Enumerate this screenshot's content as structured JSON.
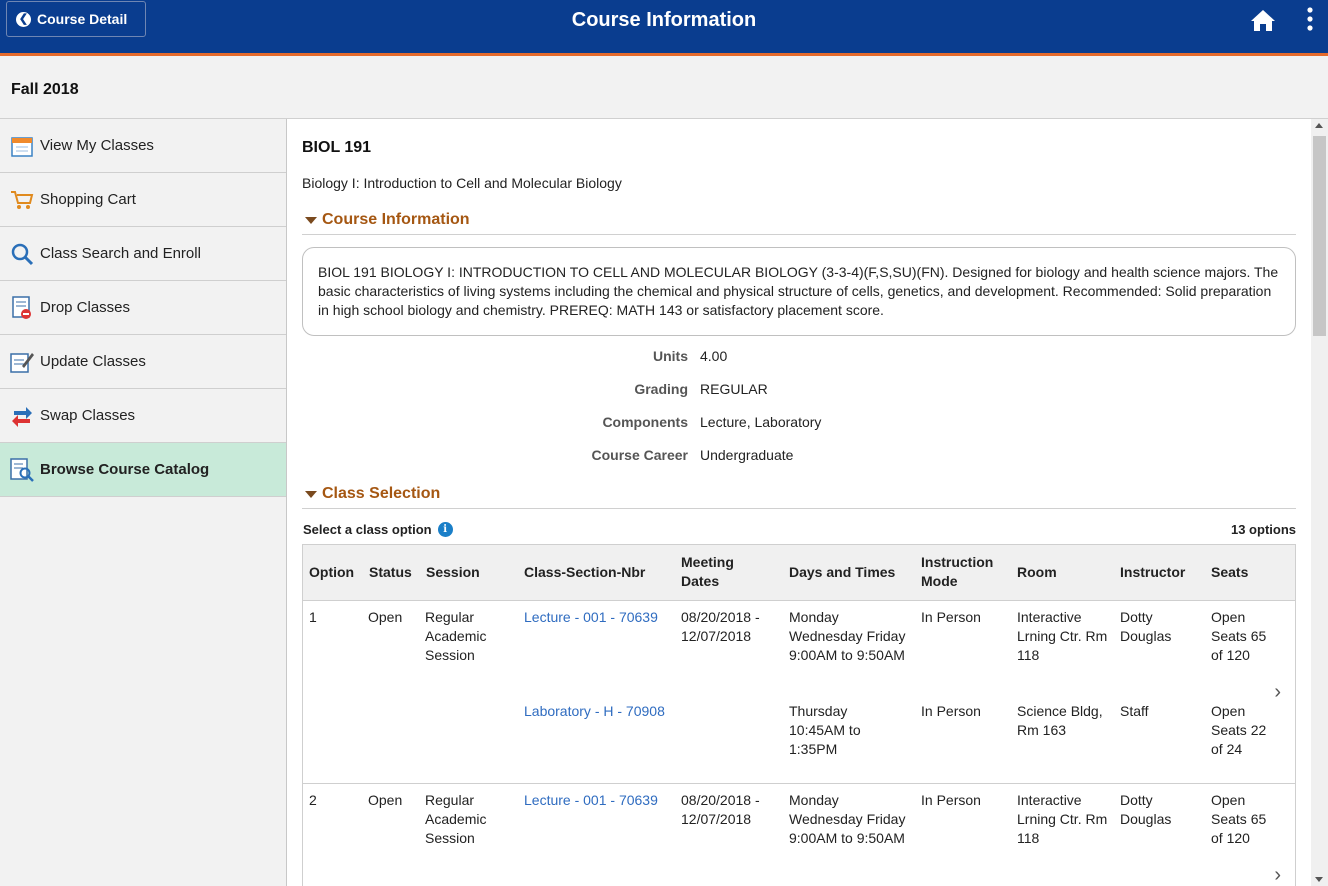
{
  "header": {
    "back_label": "Course Detail",
    "title": "Course Information",
    "home_icon": "home-icon",
    "menu_icon": "kebab-menu-icon"
  },
  "term": "Fall 2018",
  "sidebar": {
    "items": [
      {
        "label": "View My Classes",
        "icon": "calendar-icon"
      },
      {
        "label": "Shopping Cart",
        "icon": "cart-icon"
      },
      {
        "label": "Class Search and Enroll",
        "icon": "search-icon"
      },
      {
        "label": "Drop Classes",
        "icon": "drop-icon"
      },
      {
        "label": "Update Classes",
        "icon": "edit-icon"
      },
      {
        "label": "Swap Classes",
        "icon": "swap-icon"
      },
      {
        "label": "Browse Course Catalog",
        "icon": "catalog-icon",
        "active": true
      }
    ]
  },
  "course": {
    "code": "BIOL 191",
    "title": "Biology I: Introduction to Cell and Molecular Biology",
    "info_section": "Course Information",
    "description": "BIOL 191 BIOLOGY I: INTRODUCTION TO CELL AND MOLECULAR BIOLOGY (3-3-4)(F,S,SU)(FN). Designed for biology and health science majors. The basic characteristics of living systems including the chemical and physical structure of cells, genetics, and development. Recommended: Solid preparation in high school biology and chemistry. PREREQ: MATH 143 or satisfactory placement score.",
    "details": [
      {
        "label": "Units",
        "value": "4.00"
      },
      {
        "label": "Grading",
        "value": "REGULAR"
      },
      {
        "label": "Components",
        "value": "Lecture, Laboratory"
      },
      {
        "label": "Course Career",
        "value": "Undergraduate"
      }
    ]
  },
  "class_selection": {
    "section_label": "Class Selection",
    "select_label": "Select a class option",
    "count_label": "13 options",
    "columns": [
      "Option",
      "Status",
      "Session",
      "Class-Section-Nbr",
      "Meeting Dates",
      "Days and Times",
      "Instruction Mode",
      "Room",
      "Instructor",
      "Seats"
    ],
    "rows": [
      {
        "option": "1",
        "status": "Open",
        "session": "Regular Academic Session",
        "lines": [
          {
            "section": "Lecture - 001 - 70639",
            "dates": "08/20/2018 - 12/07/2018",
            "days": "Monday Wednesday Friday 9:00AM to 9:50AM",
            "mode": "In Person",
            "room": "Interactive Lrning Ctr. Rm 118",
            "instructor": "Dotty Douglas",
            "seats": "Open Seats 65 of 120"
          },
          {
            "section": "Laboratory - H - 70908",
            "dates": "",
            "days": "Thursday 10:45AM to 1:35PM",
            "mode": "In Person",
            "room": "Science Bldg, Rm 163",
            "instructor": "Staff",
            "seats": "Open Seats 22 of 24"
          }
        ]
      },
      {
        "option": "2",
        "status": "Open",
        "session": "Regular Academic Session",
        "lines": [
          {
            "section": "Lecture - 001 - 70639",
            "dates": "08/20/2018 - 12/07/2018",
            "days": "Monday Wednesday Friday 9:00AM to 9:50AM",
            "mode": "In Person",
            "room": "Interactive Lrning Ctr. Rm 118",
            "instructor": "Dotty Douglas",
            "seats": "Open Seats 65 of 120"
          }
        ]
      }
    ]
  },
  "colors": {
    "header_bg": "#0a3d8f",
    "header_accent": "#e56b2c",
    "section_title": "#a55712",
    "link": "#2f6cc0",
    "active_nav": "#c8ead9"
  }
}
